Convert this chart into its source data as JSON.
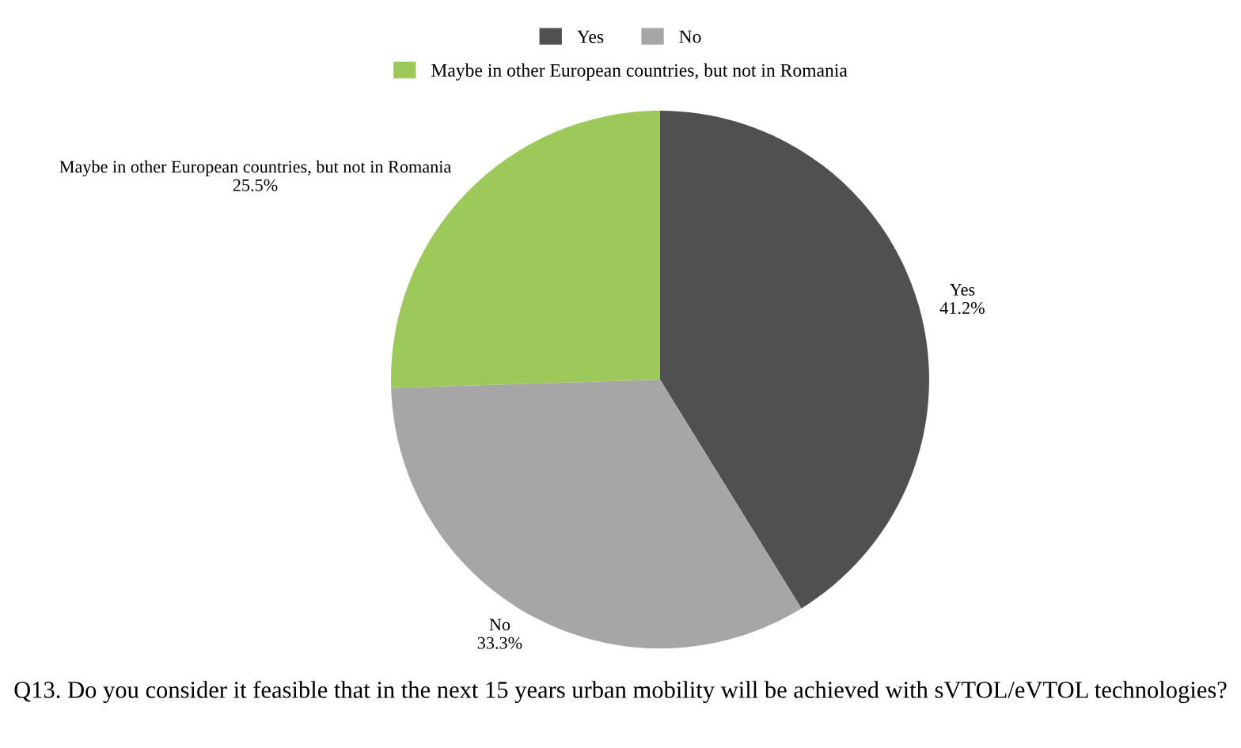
{
  "chart_data": {
    "type": "pie",
    "title": "Q13. Do you consider it feasible that in the next 15 years urban mobility will be achieved with sVTOL/eVTOL technologies?",
    "categories": [
      "Yes",
      "No",
      "Maybe in other European countries, but not in Romania"
    ],
    "values": [
      41.2,
      33.3,
      25.5
    ],
    "value_labels": [
      "41.2%",
      "33.3%",
      "25.5%"
    ],
    "colors": [
      "#505050",
      "#a6a6a6",
      "#9dc95a"
    ],
    "legend": "top"
  }
}
